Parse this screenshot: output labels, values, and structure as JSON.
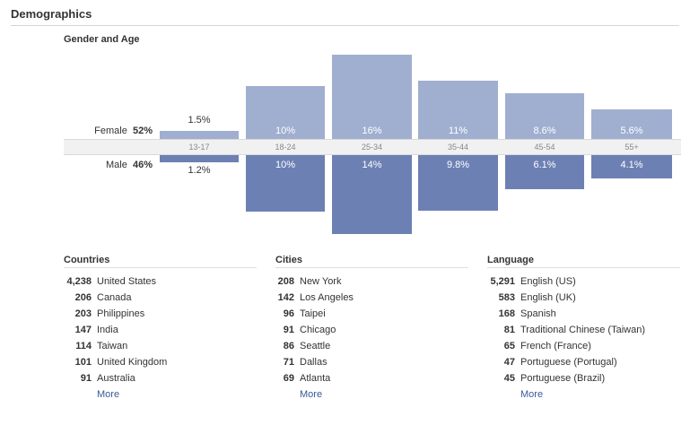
{
  "header": {
    "title": "Demographics"
  },
  "gender_age": {
    "title": "Gender and Age",
    "female_label": "Female",
    "female_pct": "52%",
    "male_label": "Male",
    "male_pct": "46%"
  },
  "chart_data": {
    "type": "bar",
    "title": "Gender and Age",
    "categories": [
      "13-17",
      "18-24",
      "25-34",
      "35-44",
      "45-54",
      "55+"
    ],
    "series": [
      {
        "name": "Female",
        "values": [
          1.5,
          10,
          16,
          11,
          8.6,
          5.6
        ],
        "labels": [
          "1.5%",
          "10%",
          "16%",
          "11%",
          "8.6%",
          "5.6%"
        ]
      },
      {
        "name": "Male",
        "values": [
          1.2,
          10,
          14,
          9.8,
          6.1,
          4.1
        ],
        "labels": [
          "1.2%",
          "10%",
          "14%",
          "9.8%",
          "6.1%",
          "4.1%"
        ]
      }
    ],
    "colors": {
      "female": "#a0aed0",
      "male": "#6d80b3"
    },
    "ylim": [
      0,
      16
    ],
    "grid": false,
    "legend": "none"
  },
  "countries": {
    "title": "Countries",
    "items": [
      {
        "count": "4,238",
        "name": "United States"
      },
      {
        "count": "206",
        "name": "Canada"
      },
      {
        "count": "203",
        "name": "Philippines"
      },
      {
        "count": "147",
        "name": "India"
      },
      {
        "count": "114",
        "name": "Taiwan"
      },
      {
        "count": "101",
        "name": "United Kingdom"
      },
      {
        "count": "91",
        "name": "Australia"
      }
    ],
    "more": "More"
  },
  "cities": {
    "title": "Cities",
    "items": [
      {
        "count": "208",
        "name": "New York"
      },
      {
        "count": "142",
        "name": "Los Angeles"
      },
      {
        "count": "96",
        "name": "Taipei"
      },
      {
        "count": "91",
        "name": "Chicago"
      },
      {
        "count": "86",
        "name": "Seattle"
      },
      {
        "count": "71",
        "name": "Dallas"
      },
      {
        "count": "69",
        "name": "Atlanta"
      }
    ],
    "more": "More"
  },
  "language": {
    "title": "Language",
    "items": [
      {
        "count": "5,291",
        "name": "English (US)"
      },
      {
        "count": "583",
        "name": "English (UK)"
      },
      {
        "count": "168",
        "name": "Spanish"
      },
      {
        "count": "81",
        "name": "Traditional Chinese (Taiwan)"
      },
      {
        "count": "65",
        "name": "French (France)"
      },
      {
        "count": "47",
        "name": "Portuguese (Portugal)"
      },
      {
        "count": "45",
        "name": "Portuguese (Brazil)"
      }
    ],
    "more": "More"
  }
}
